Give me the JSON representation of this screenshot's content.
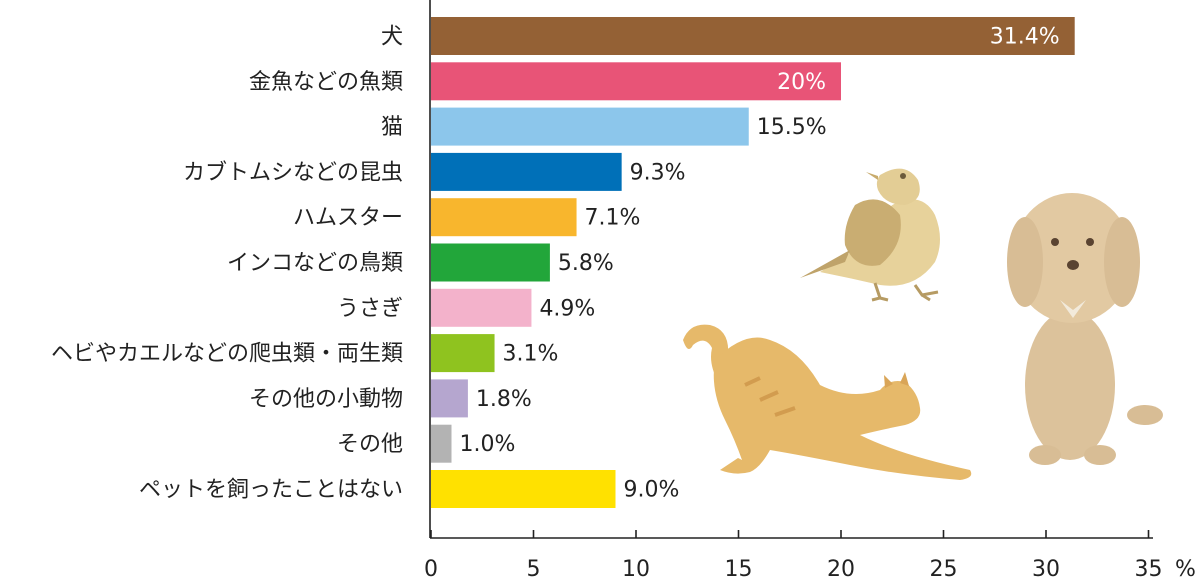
{
  "chart_data": {
    "type": "bar",
    "orientation": "horizontal",
    "title": "",
    "xlabel": "",
    "ylabel": "",
    "unit": "%",
    "xlim": [
      0,
      35
    ],
    "ticks": [
      "0",
      "5",
      "10",
      "15",
      "20",
      "25",
      "30",
      "35"
    ],
    "tick_values": [
      0,
      5,
      10,
      15,
      20,
      25,
      30,
      35
    ],
    "grid": false,
    "categories": [
      "犬",
      "金魚などの魚類",
      "猫",
      "カブトムシなどの昆虫",
      "ハムスター",
      "インコなどの鳥類",
      "うさぎ",
      "ヘビやカエルなどの爬虫類・両生類",
      "その他の小動物",
      "その他",
      "ペットを飼ったことはない"
    ],
    "values": [
      31.4,
      20,
      15.5,
      9.3,
      7.1,
      5.8,
      4.9,
      3.1,
      1.8,
      1.0,
      9.0
    ],
    "value_labels": [
      "31.4%",
      "20%",
      "15.5%",
      "9.3%",
      "7.1%",
      "5.8%",
      "4.9%",
      "3.1%",
      "1.8%",
      "1.0%",
      "9.0%"
    ],
    "colors": [
      "#946135",
      "#e85477",
      "#8cc6eb",
      "#0070b8",
      "#f8b62d",
      "#22a63a",
      "#f3b2cb",
      "#8fc31f",
      "#b5a6cf",
      "#b3b3b3",
      "#ffe100"
    ],
    "label_inside": [
      true,
      true,
      false,
      false,
      false,
      false,
      false,
      false,
      false,
      false,
      false
    ]
  },
  "illustrations": [
    "bird-illustration",
    "cat-illustration",
    "dog-illustration"
  ]
}
